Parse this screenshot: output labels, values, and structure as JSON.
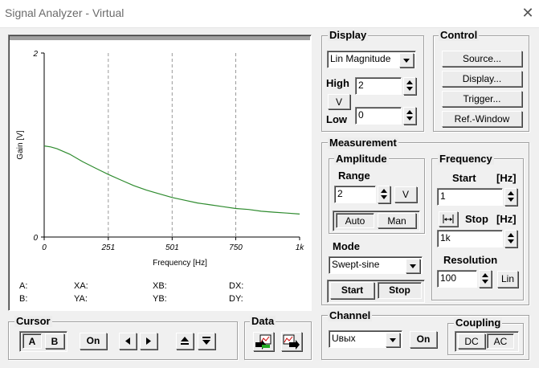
{
  "window": {
    "title": "Signal Analyzer - Virtual",
    "close_glyph": "✕"
  },
  "chart_data": {
    "type": "line",
    "xlabel": "Frequency [Hz]",
    "ylabel": "Gain [V]",
    "xlim": [
      0,
      1000
    ],
    "ylim": [
      0,
      2
    ],
    "x_ticks": [
      "0",
      "251",
      "501",
      "750",
      "1k"
    ],
    "y_ticks": [
      "0",
      "2"
    ],
    "grid": "vertical dashed",
    "series_color": "#2e8b2e",
    "x": [
      0,
      25,
      50,
      100,
      150,
      200,
      251,
      300,
      350,
      400,
      450,
      501,
      550,
      600,
      650,
      700,
      750,
      800,
      850,
      900,
      950,
      1000
    ],
    "y": [
      0.99,
      0.98,
      0.96,
      0.9,
      0.82,
      0.75,
      0.68,
      0.62,
      0.56,
      0.51,
      0.47,
      0.43,
      0.4,
      0.37,
      0.35,
      0.33,
      0.31,
      0.3,
      0.28,
      0.27,
      0.26,
      0.25
    ]
  },
  "cursor_readouts": {
    "a": "A:",
    "b": "B:",
    "xa": "XA:",
    "ya": "YA:",
    "xb": "XB:",
    "yb": "YB:",
    "dx": "DX:",
    "dy": "DY:"
  },
  "cursor": {
    "label": "Cursor",
    "a": "A",
    "b": "B",
    "on": "On"
  },
  "data_group": {
    "label": "Data"
  },
  "display": {
    "label": "Display",
    "mode": "Lin Magnitude",
    "high_label": "High",
    "high_value": "2",
    "v_button": "V",
    "low_label": "Low",
    "low_value": "0"
  },
  "control": {
    "label": "Control",
    "buttons": [
      "Source...",
      "Display...",
      "Trigger...",
      "Ref.-Window"
    ]
  },
  "measurement": {
    "label": "Measurement",
    "amplitude": {
      "label": "Amplitude",
      "range_label": "Range",
      "range_value": "2",
      "v_button": "V",
      "auto": "Auto",
      "man": "Man"
    },
    "frequency": {
      "label": "Frequency",
      "start_label": "Start",
      "start_unit": "[Hz]",
      "start_value": "1",
      "stop_label": "Stop",
      "stop_unit": "[Hz]",
      "stop_value": "1k",
      "resolution_label": "Resolution",
      "resolution_value": "100",
      "lin_button": "Lin"
    },
    "mode": {
      "label": "Mode",
      "value": "Swept-sine",
      "start": "Start",
      "stop": "Stop"
    }
  },
  "channel": {
    "label": "Channel",
    "value": "Uвых",
    "on": "On"
  },
  "coupling": {
    "label": "Coupling",
    "dc": "DC",
    "ac": "AC"
  }
}
